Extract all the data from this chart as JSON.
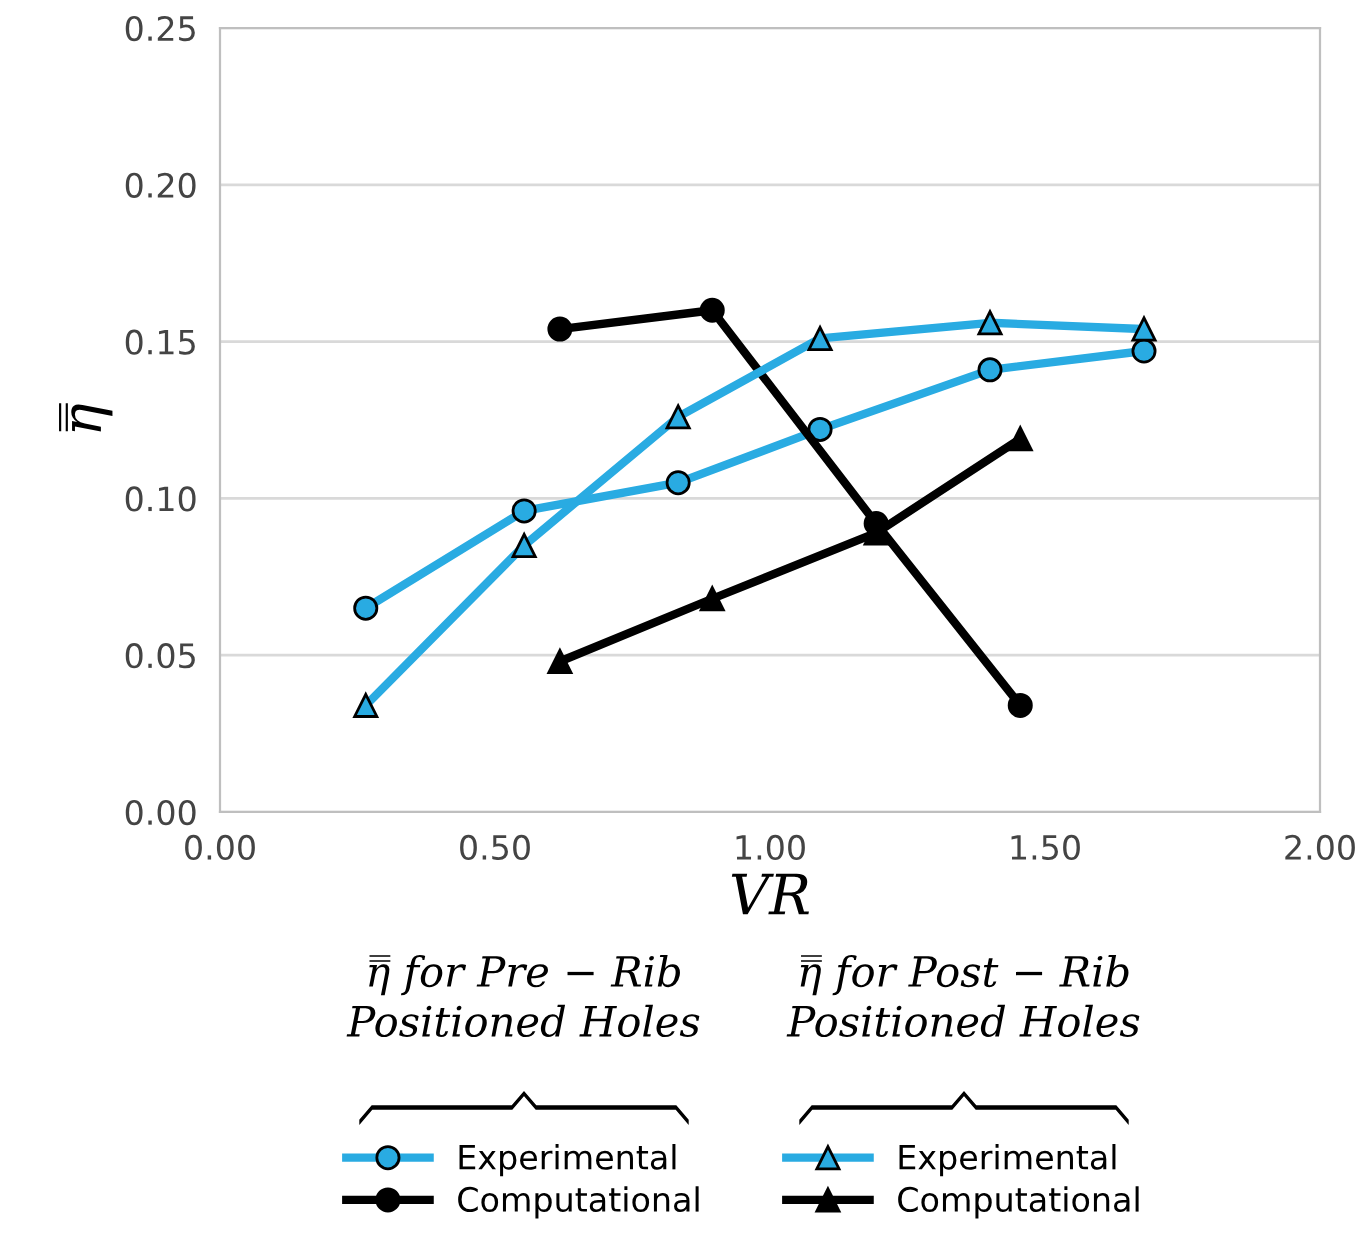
{
  "chart_data": {
    "type": "line",
    "xlabel": "VR",
    "ylabel": "η̿",
    "xlim": [
      0,
      2
    ],
    "ylim": [
      0,
      0.25
    ],
    "xticks": [
      {
        "value": 0,
        "label": "0.00"
      },
      {
        "value": 0.5,
        "label": "0.50"
      },
      {
        "value": 1,
        "label": "1.00"
      },
      {
        "value": 1.5,
        "label": "1.50"
      },
      {
        "value": 2,
        "label": "2.00"
      }
    ],
    "yticks": [
      {
        "value": 0,
        "label": "0.00"
      },
      {
        "value": 0.05,
        "label": "0.05"
      },
      {
        "value": 0.1,
        "label": "0.10"
      },
      {
        "value": 0.15,
        "label": "0.15"
      },
      {
        "value": 0.2,
        "label": "0.20"
      },
      {
        "value": 0.25,
        "label": "0.25"
      }
    ],
    "grid": "y",
    "legend": "bottom",
    "line_style": "solid",
    "annotations": [
      "η̿ for Pre − Rib\nPositioned Holes",
      "η̿ for Post − Rib\nPositioned Holes"
    ],
    "series": [
      {
        "name": "Experimental",
        "color": "#29abe2",
        "marker": "circle",
        "x": [
          0.265,
          0.553,
          0.833,
          1.091,
          1.4,
          1.68
        ],
        "values": [
          0.065,
          0.096,
          0.105,
          0.122,
          0.141,
          0.147
        ]
      },
      {
        "name": "Computational",
        "color": "#000000",
        "marker": "circle",
        "x": [
          0.618,
          0.895,
          1.193,
          1.455
        ],
        "values": [
          0.154,
          0.16,
          0.092,
          0.034
        ]
      },
      {
        "name": "Experimental",
        "color": "#29abe2",
        "marker": "triangle",
        "x": [
          0.265,
          0.553,
          0.833,
          1.091,
          1.4,
          1.68
        ],
        "values": [
          0.034,
          0.085,
          0.126,
          0.151,
          0.156,
          0.154
        ]
      },
      {
        "name": "Computational",
        "color": "#000000",
        "marker": "triangle",
        "x": [
          0.618,
          0.895,
          1.193,
          1.455
        ],
        "values": [
          0.048,
          0.068,
          0.089,
          0.119
        ]
      }
    ]
  }
}
